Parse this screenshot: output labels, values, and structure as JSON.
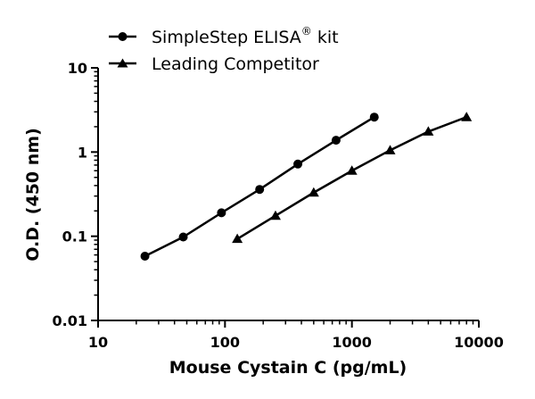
{
  "chart_data": {
    "type": "line",
    "xscale": "log",
    "yscale": "log",
    "xlim": [
      10,
      10000
    ],
    "ylim": [
      0.01,
      10
    ],
    "xlabel": "Mouse Cystain C (pg/mL)",
    "ylabel": "O.D. (450 nm)",
    "x_ticks": [
      "10",
      "100",
      "1000",
      "10000"
    ],
    "y_ticks": [
      "0.01",
      "0.1",
      "1",
      "10"
    ],
    "legend_position": "top-left",
    "grid": false,
    "series": [
      {
        "name": "SimpleStep ELISA",
        "name_sup": "®",
        "name_suffix": " kit",
        "marker": "circle",
        "x": [
          23.4,
          46.9,
          93.8,
          187.5,
          375,
          750,
          1500
        ],
        "y": [
          0.058,
          0.098,
          0.19,
          0.36,
          0.72,
          1.38,
          2.6
        ]
      },
      {
        "name": "Leading Competitor",
        "marker": "triangle",
        "x": [
          125,
          250,
          500,
          1000,
          2000,
          4000,
          8000
        ],
        "y": [
          0.093,
          0.175,
          0.33,
          0.6,
          1.05,
          1.75,
          2.6
        ]
      }
    ]
  }
}
